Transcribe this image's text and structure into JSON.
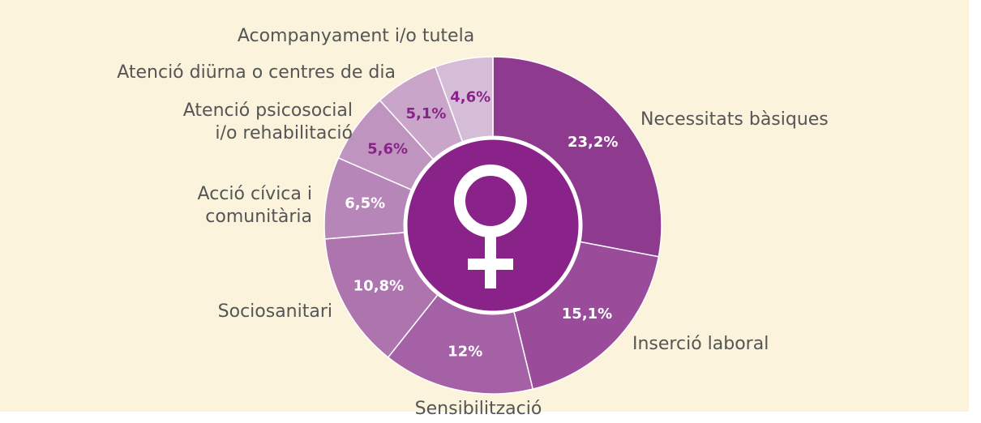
{
  "chart_data": {
    "type": "donut",
    "categories": [
      "Necessitats bàsiques",
      "Inserció laboral",
      "Sensibilització",
      "Sociosanitari",
      "Acció cívica i\ncomunitària",
      "Atenció psicosocial\ni/o rehabilitació",
      "Atenció diürna o centres de dia",
      "Acompanyament i/o tutela"
    ],
    "values": [
      23.2,
      15.1,
      12,
      10.8,
      6.5,
      5.6,
      5.1,
      4.6
    ],
    "value_labels": [
      "23,2%",
      "15,1%",
      "12%",
      "10,8%",
      "6,5%",
      "5,6%",
      "5,1%",
      "4,6%"
    ],
    "colors": [
      "#8e3a8f",
      "#9a4c9b",
      "#a461a5",
      "#ae74ae",
      "#b786b8",
      "#bf95c0",
      "#c8a5c9",
      "#d5bcd7"
    ],
    "value_label_colors": [
      "#ffffff",
      "#ffffff",
      "#ffffff",
      "#ffffff",
      "#ffffff",
      "#8a2389",
      "#8a2389",
      "#8a2389"
    ]
  }
}
